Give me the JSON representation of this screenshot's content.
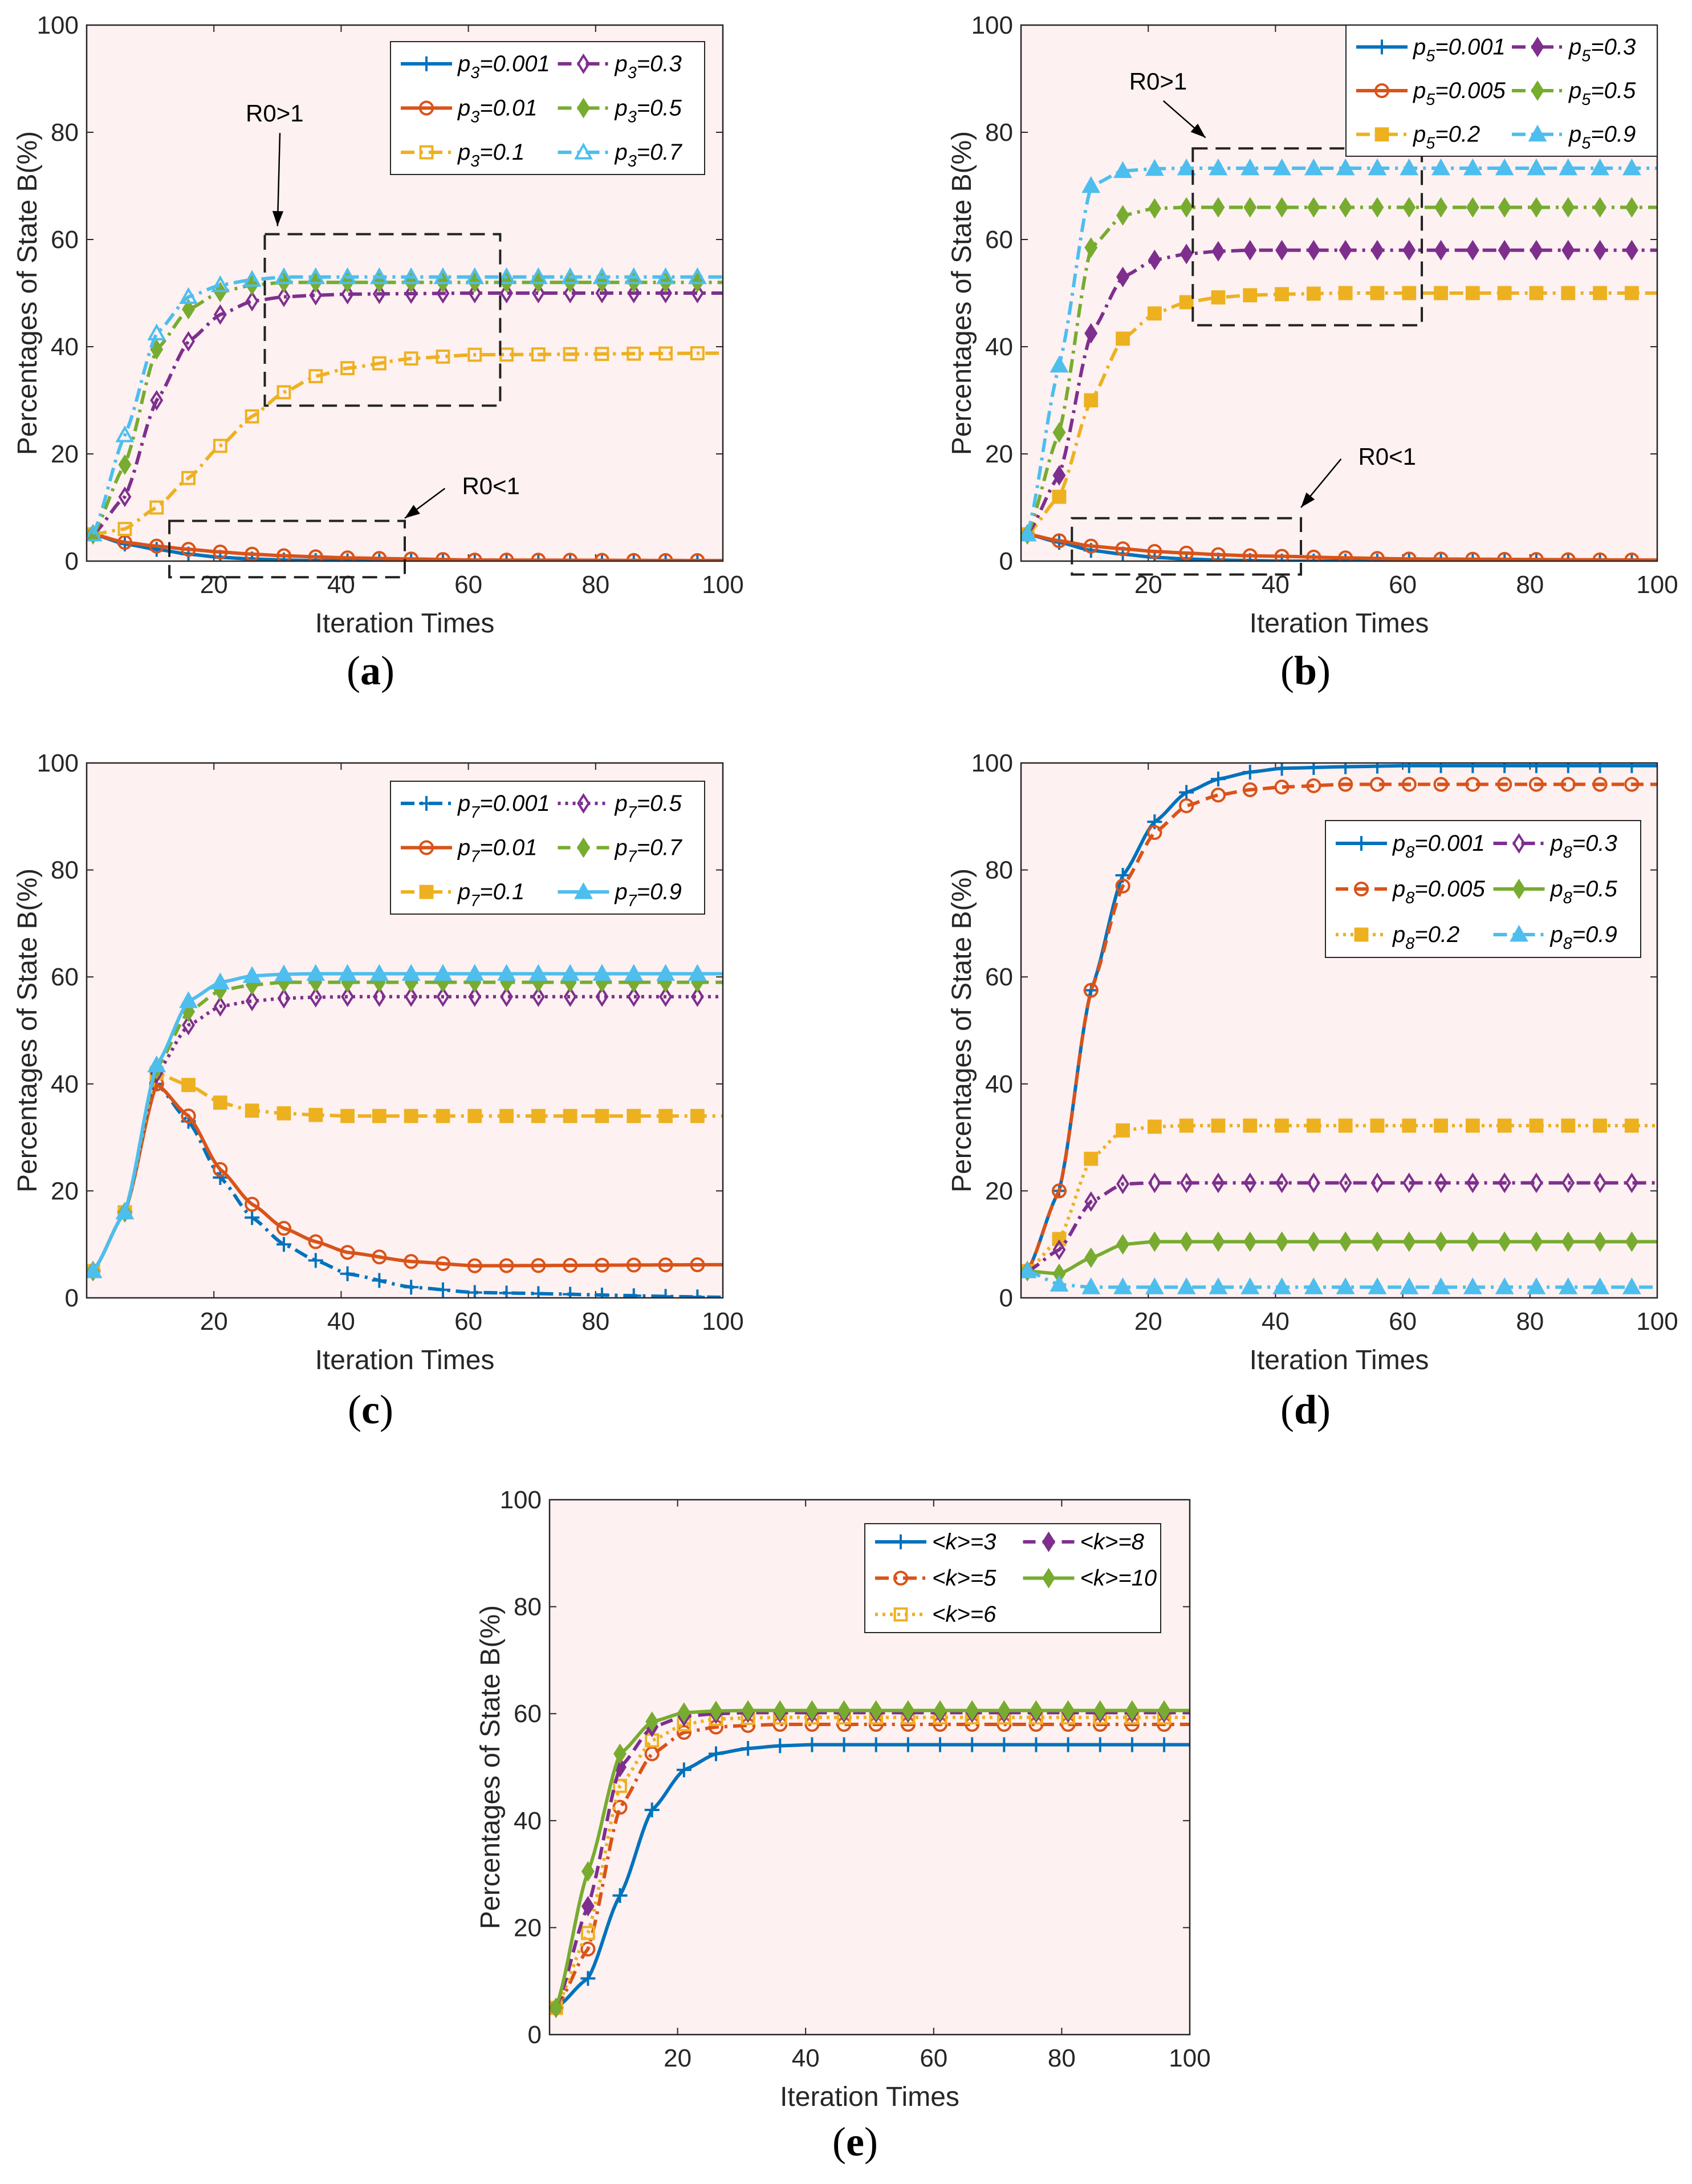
{
  "colors": {
    "blue": "#0072BD",
    "orange": "#D95319",
    "yellow": "#EDB120",
    "purple": "#7E2F8E",
    "green": "#77AC30",
    "cyan": "#4DBEEE",
    "plot_bg": "#FDF1F1"
  },
  "chart_data": [
    {
      "id": "a",
      "panel_label": "a",
      "type": "line",
      "xlabel": "Iteration Times",
      "ylabel": "Percentages of State B(%)",
      "xlim": [
        0,
        100
      ],
      "ylim": [
        0,
        100
      ],
      "xticks": [
        20,
        40,
        60,
        80,
        100
      ],
      "yticks": [
        0,
        20,
        40,
        60,
        80,
        100
      ],
      "x": [
        1,
        6,
        11,
        16,
        21,
        26,
        31,
        36,
        41,
        51,
        61,
        100
      ],
      "series": [
        {
          "name": "p3=0.001",
          "color": "#0072BD",
          "line": "solid",
          "marker": "plus",
          "values": [
            5,
            3.2,
            2.2,
            1.3,
            0.7,
            0.4,
            0.2,
            0.1,
            0.05,
            0,
            0,
            0
          ]
        },
        {
          "name": "p3=0.01",
          "color": "#D95319",
          "line": "solid",
          "marker": "circle",
          "values": [
            5,
            3.5,
            2.8,
            2.2,
            1.7,
            1.3,
            1.0,
            0.8,
            0.6,
            0.4,
            0.2,
            0.1
          ]
        },
        {
          "name": "p3=0.1",
          "color": "#EDB120",
          "line": "dashdot",
          "marker": "square",
          "values": [
            5,
            6,
            10,
            15.5,
            21.5,
            27,
            31.5,
            34.5,
            36,
            37.8,
            38.5,
            38.8
          ]
        },
        {
          "name": "p3=0.3",
          "color": "#7E2F8E",
          "line": "dashdot",
          "marker": "diamond",
          "values": [
            5,
            12,
            30,
            41,
            46,
            48.5,
            49.3,
            49.6,
            49.8,
            49.9,
            50,
            50
          ]
        },
        {
          "name": "p3=0.5",
          "color": "#77AC30",
          "line": "dashdot",
          "marker": "diamond-filled",
          "values": [
            5,
            18,
            39.5,
            47,
            50.2,
            51.5,
            52,
            52,
            52,
            52,
            52,
            52
          ]
        },
        {
          "name": "p3=0.7",
          "color": "#4DBEEE",
          "line": "dashdot",
          "marker": "triangle",
          "values": [
            5,
            23.5,
            42.5,
            49.3,
            51.5,
            52.5,
            53,
            53,
            53,
            53,
            53,
            53
          ]
        }
      ],
      "annotations": [
        {
          "text": "R0>1",
          "box_x": [
            28,
            65
          ],
          "box_y": [
            29,
            61
          ],
          "label_at": [
            25,
            82
          ],
          "arrow_to": [
            30,
            62.5
          ]
        },
        {
          "text": "R0<1",
          "box_x": [
            13,
            50
          ],
          "box_y": [
            -3,
            7.5
          ],
          "label_at": [
            59,
            12.5
          ],
          "arrow_to": [
            50,
            8
          ]
        }
      ]
    },
    {
      "id": "b",
      "panel_label": "b",
      "type": "line",
      "xlabel": "Iteration Times",
      "ylabel": "Percentages of State B(%)",
      "xlim": [
        0,
        100
      ],
      "ylim": [
        0,
        100
      ],
      "xticks": [
        20,
        40,
        60,
        80,
        100
      ],
      "yticks": [
        0,
        20,
        40,
        60,
        80,
        100
      ],
      "x": [
        1,
        6,
        11,
        16,
        21,
        26,
        31,
        36,
        41,
        51,
        61,
        100
      ],
      "series": [
        {
          "name": "p5=0.001",
          "color": "#0072BD",
          "line": "solid",
          "marker": "plus",
          "values": [
            5,
            3.5,
            2,
            1.3,
            0.7,
            0.4,
            0.2,
            0.1,
            0,
            0,
            0,
            0
          ]
        },
        {
          "name": "p5=0.005",
          "color": "#D95319",
          "line": "solid",
          "marker": "circle",
          "values": [
            5,
            3.8,
            2.8,
            2.3,
            1.8,
            1.5,
            1.2,
            1.0,
            0.9,
            0.6,
            0.4,
            0.2
          ]
        },
        {
          "name": "p5=0.2",
          "color": "#EDB120",
          "line": "dashdot",
          "marker": "square-filled",
          "values": [
            5,
            12,
            30,
            41.5,
            46.2,
            48.3,
            49.2,
            49.6,
            49.8,
            50,
            50,
            50
          ]
        },
        {
          "name": "p5=0.3",
          "color": "#7E2F8E",
          "line": "dashdot",
          "marker": "diamond-filled",
          "values": [
            5,
            16,
            42.5,
            53,
            56.2,
            57.3,
            57.8,
            58,
            58,
            58,
            58,
            58
          ]
        },
        {
          "name": "p5=0.5",
          "color": "#77AC30",
          "line": "dashdot",
          "marker": "diamond-filled",
          "values": [
            5,
            24,
            58.5,
            64.5,
            65.8,
            66,
            66,
            66,
            66,
            66,
            66,
            66
          ]
        },
        {
          "name": "p5=0.9",
          "color": "#4DBEEE",
          "line": "dashdot",
          "marker": "triangle-filled",
          "values": [
            5,
            36.5,
            70,
            72.8,
            73.2,
            73.3,
            73.3,
            73.3,
            73.3,
            73.3,
            73.3,
            73.3
          ]
        }
      ],
      "annotations": [
        {
          "text": "R0>1",
          "box_x": [
            27,
            63
          ],
          "box_y": [
            44,
            77
          ],
          "label_at": [
            17,
            88
          ],
          "arrow_to": [
            29,
            79
          ]
        },
        {
          "text": "R0<1",
          "box_x": [
            8,
            44
          ],
          "box_y": [
            -2.5,
            8
          ],
          "label_at": [
            53,
            18
          ],
          "arrow_to": [
            44,
            10
          ]
        }
      ]
    },
    {
      "id": "c",
      "panel_label": "c",
      "type": "line",
      "xlabel": "Iteration Times",
      "ylabel": "Percentages of State B(%)",
      "xlim": [
        0,
        100
      ],
      "ylim": [
        0,
        100
      ],
      "xticks": [
        20,
        40,
        60,
        80,
        100
      ],
      "yticks": [
        0,
        20,
        40,
        60,
        80,
        100
      ],
      "x": [
        1,
        6,
        11,
        16,
        21,
        26,
        31,
        36,
        41,
        51,
        61,
        100
      ],
      "series": [
        {
          "name": "p7=0.001",
          "color": "#0072BD",
          "line": "dashdot",
          "marker": "plus",
          "values": [
            5,
            16,
            40,
            33,
            22.5,
            15,
            10,
            7,
            4.5,
            2,
            1,
            0.1
          ]
        },
        {
          "name": "p7=0.01",
          "color": "#D95319",
          "line": "solid",
          "marker": "circle",
          "values": [
            5,
            16,
            40,
            34,
            24,
            17.5,
            13,
            10.5,
            8.5,
            6.8,
            6,
            6.2
          ]
        },
        {
          "name": "p7=0.1",
          "color": "#EDB120",
          "line": "dashdot",
          "marker": "square-filled",
          "values": [
            5,
            16,
            42,
            39.8,
            36.5,
            35,
            34.5,
            34.2,
            34,
            34,
            34,
            34
          ]
        },
        {
          "name": "p7=0.5",
          "color": "#7E2F8E",
          "line": "dotted",
          "marker": "diamond",
          "values": [
            5,
            16,
            42,
            51,
            54.5,
            55.5,
            56,
            56.2,
            56.3,
            56.3,
            56.3,
            56.3
          ]
        },
        {
          "name": "p7=0.7",
          "color": "#77AC30",
          "line": "dashed",
          "marker": "diamond-filled",
          "values": [
            5,
            16,
            43,
            53.5,
            57.5,
            58.5,
            59,
            59,
            59,
            59,
            59,
            59
          ]
        },
        {
          "name": "p7=0.9",
          "color": "#4DBEEE",
          "line": "solid",
          "marker": "triangle-filled",
          "values": [
            5,
            16,
            43.5,
            55.5,
            59,
            60.2,
            60.5,
            60.6,
            60.6,
            60.6,
            60.6,
            60.6
          ]
        }
      ],
      "annotations": []
    },
    {
      "id": "d",
      "panel_label": "d",
      "type": "line",
      "xlabel": "Iteration Times",
      "ylabel": "Percentages of State B(%)",
      "xlim": [
        0,
        100
      ],
      "ylim": [
        0,
        100
      ],
      "xticks": [
        20,
        40,
        60,
        80,
        100
      ],
      "yticks": [
        0,
        20,
        40,
        60,
        80,
        100
      ],
      "x": [
        1,
        6,
        11,
        16,
        21,
        26,
        31,
        36,
        41,
        51,
        61,
        100
      ],
      "series": [
        {
          "name": "p8=0.001",
          "color": "#0072BD",
          "line": "solid",
          "marker": "plus",
          "values": [
            5,
            20,
            57.5,
            79,
            89,
            94.5,
            97,
            98.3,
            99,
            99.3,
            99.5,
            99.5
          ]
        },
        {
          "name": "p8=0.005",
          "color": "#D95319",
          "line": "dashed",
          "marker": "circle",
          "values": [
            5,
            20,
            57.5,
            77,
            87,
            92,
            94,
            95,
            95.5,
            96,
            96,
            96
          ]
        },
        {
          "name": "p8=0.2",
          "color": "#EDB120",
          "line": "dotted",
          "marker": "square-filled",
          "values": [
            5,
            11,
            26,
            31.3,
            32,
            32.2,
            32.2,
            32.2,
            32.2,
            32.2,
            32.2,
            32.2
          ]
        },
        {
          "name": "p8=0.3",
          "color": "#7E2F8E",
          "line": "dashdot",
          "marker": "diamond",
          "values": [
            5,
            9,
            18,
            21.3,
            21.5,
            21.5,
            21.5,
            21.5,
            21.5,
            21.5,
            21.5,
            21.5
          ]
        },
        {
          "name": "p8=0.5",
          "color": "#77AC30",
          "line": "solid",
          "marker": "diamond-filled",
          "values": [
            5,
            4.5,
            7.5,
            10,
            10.5,
            10.5,
            10.5,
            10.5,
            10.5,
            10.5,
            10.5,
            10.5
          ]
        },
        {
          "name": "p8=0.9",
          "color": "#4DBEEE",
          "line": "dashdot",
          "marker": "triangle-filled",
          "values": [
            5,
            2.5,
            2,
            2,
            2,
            2,
            2,
            2,
            2,
            2,
            2,
            2
          ]
        }
      ],
      "annotations": []
    },
    {
      "id": "e",
      "panel_label": "e",
      "type": "line",
      "xlabel": "Iteration Times",
      "ylabel": "Percentages of State B(%)",
      "xlim": [
        0,
        100
      ],
      "ylim": [
        0,
        100
      ],
      "xticks": [
        20,
        40,
        60,
        80,
        100
      ],
      "yticks": [
        0,
        20,
        40,
        60,
        80,
        100
      ],
      "x": [
        1,
        6,
        11,
        16,
        21,
        26,
        31,
        36,
        41,
        51,
        61,
        100
      ],
      "series": [
        {
          "name": "<k>=3",
          "color": "#0072BD",
          "line": "solid",
          "marker": "plus",
          "values": [
            5,
            10.5,
            26,
            42,
            49.5,
            52.5,
            53.5,
            54,
            54.2,
            54.2,
            54.2,
            54.2
          ]
        },
        {
          "name": "<k>=5",
          "color": "#D95319",
          "line": "dashdot",
          "marker": "circle",
          "values": [
            5,
            16,
            42.5,
            52.5,
            56.5,
            57.5,
            57.8,
            58,
            58,
            58,
            58,
            58
          ]
        },
        {
          "name": "<k>=6",
          "color": "#EDB120",
          "line": "dotted",
          "marker": "square",
          "values": [
            5,
            19,
            46.5,
            55,
            58,
            59,
            59.2,
            59.3,
            59.3,
            59.3,
            59.3,
            59.3
          ]
        },
        {
          "name": "<k>=8",
          "color": "#7E2F8E",
          "line": "dashed",
          "marker": "diamond-filled",
          "values": [
            5,
            24,
            50,
            57.5,
            59.5,
            60,
            60.2,
            60.2,
            60.2,
            60.2,
            60.2,
            60.2
          ]
        },
        {
          "name": "<k>=10",
          "color": "#77AC30",
          "line": "solid",
          "marker": "diamond-filled",
          "values": [
            5,
            30.5,
            52.5,
            58.5,
            60.2,
            60.5,
            60.6,
            60.6,
            60.6,
            60.6,
            60.6,
            60.6
          ]
        }
      ],
      "annotations": []
    }
  ]
}
